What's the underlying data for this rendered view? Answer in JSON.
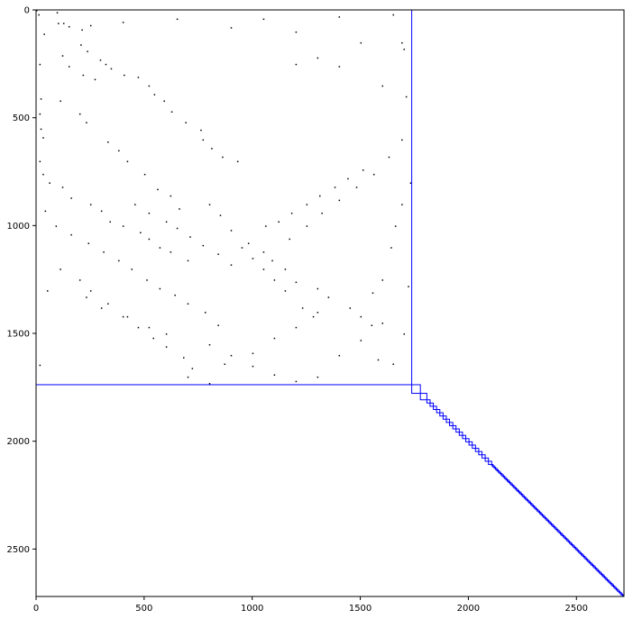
{
  "chart_data": {
    "type": "heatmap",
    "title": "",
    "xlabel": "",
    "ylabel": "",
    "matrix_size": 2720,
    "xlim": [
      0,
      2720
    ],
    "ylim": [
      2720,
      0
    ],
    "x_ticks": [
      0,
      500,
      1000,
      1500,
      2000,
      2500
    ],
    "y_ticks": [
      0,
      500,
      1000,
      1500,
      2000,
      2500
    ],
    "x_tick_labels": [
      "0",
      "500",
      "1000",
      "1500",
      "2000",
      "2500"
    ],
    "y_tick_labels": [
      "0",
      "500",
      "1000",
      "1500",
      "2000",
      "2500"
    ],
    "grid": false,
    "colors": {
      "nonzero": "#000000",
      "block_outline": "#0000ff",
      "frame": "#000000"
    },
    "blocks": [
      {
        "start": 0,
        "end": 1738
      },
      {
        "start": 1738,
        "end": 1778
      },
      {
        "start": 1778,
        "end": 1808
      },
      {
        "start": 1808,
        "end": 2720,
        "pattern": "small diagonal blocks"
      }
    ],
    "nonzeros": [
      [
        0,
        0
      ],
      [
        10,
        20
      ],
      [
        95,
        10
      ],
      [
        100,
        60
      ],
      [
        35,
        110
      ],
      [
        15,
        250
      ],
      [
        20,
        410
      ],
      [
        15,
        480
      ],
      [
        20,
        550
      ],
      [
        30,
        590
      ],
      [
        15,
        700
      ],
      [
        30,
        760
      ],
      [
        40,
        930
      ],
      [
        50,
        1300
      ],
      [
        15,
        1645
      ],
      [
        125,
        60
      ],
      [
        150,
        75
      ],
      [
        210,
        90
      ],
      [
        205,
        160
      ],
      [
        235,
        190
      ],
      [
        295,
        230
      ],
      [
        320,
        250
      ],
      [
        345,
        270
      ],
      [
        405,
        300
      ],
      [
        470,
        310
      ],
      [
        520,
        350
      ],
      [
        545,
        390
      ],
      [
        590,
        420
      ],
      [
        625,
        470
      ],
      [
        690,
        520
      ],
      [
        760,
        555
      ],
      [
        770,
        600
      ],
      [
        810,
        640
      ],
      [
        860,
        680
      ],
      [
        930,
        700
      ],
      [
        120,
        210
      ],
      [
        150,
        260
      ],
      [
        215,
        300
      ],
      [
        270,
        320
      ],
      [
        110,
        420
      ],
      [
        200,
        480
      ],
      [
        230,
        520
      ],
      [
        330,
        610
      ],
      [
        380,
        650
      ],
      [
        420,
        700
      ],
      [
        500,
        760
      ],
      [
        560,
        830
      ],
      [
        620,
        860
      ],
      [
        660,
        920
      ],
      [
        60,
        800
      ],
      [
        120,
        820
      ],
      [
        160,
        870
      ],
      [
        250,
        900
      ],
      [
        300,
        930
      ],
      [
        340,
        980
      ],
      [
        400,
        1000
      ],
      [
        480,
        1030
      ],
      [
        520,
        1060
      ],
      [
        570,
        1100
      ],
      [
        620,
        1120
      ],
      [
        700,
        1160
      ],
      [
        90,
        1000
      ],
      [
        160,
        1040
      ],
      [
        240,
        1080
      ],
      [
        310,
        1120
      ],
      [
        380,
        1160
      ],
      [
        440,
        1200
      ],
      [
        510,
        1250
      ],
      [
        570,
        1290
      ],
      [
        640,
        1320
      ],
      [
        700,
        1360
      ],
      [
        780,
        1400
      ],
      [
        840,
        1460
      ],
      [
        110,
        1200
      ],
      [
        200,
        1250
      ],
      [
        250,
        1300
      ],
      [
        330,
        1360
      ],
      [
        400,
        1420
      ],
      [
        470,
        1470
      ],
      [
        540,
        1520
      ],
      [
        600,
        1560
      ],
      [
        680,
        1610
      ],
      [
        720,
        1660
      ],
      [
        250,
        70
      ],
      [
        400,
        55
      ],
      [
        650,
        40
      ],
      [
        1050,
        40
      ],
      [
        1400,
        30
      ],
      [
        1650,
        20
      ],
      [
        900,
        80
      ],
      [
        1200,
        100
      ],
      [
        230,
        1330
      ],
      [
        300,
        1380
      ],
      [
        420,
        1420
      ],
      [
        520,
        1470
      ],
      [
        600,
        1500
      ],
      [
        800,
        1550
      ],
      [
        900,
        1600
      ],
      [
        1000,
        1650
      ],
      [
        1100,
        1690
      ],
      [
        1200,
        1720
      ],
      [
        1300,
        1700
      ],
      [
        1400,
        1600
      ],
      [
        1500,
        1530
      ],
      [
        1600,
        1450
      ],
      [
        980,
        1080
      ],
      [
        1050,
        1120
      ],
      [
        1090,
        1160
      ],
      [
        1150,
        1200
      ],
      [
        1200,
        1260
      ],
      [
        1300,
        1290
      ],
      [
        1350,
        1330
      ],
      [
        1450,
        1380
      ],
      [
        1500,
        1420
      ],
      [
        1550,
        1460
      ],
      [
        1200,
        250
      ],
      [
        1300,
        220
      ],
      [
        1400,
        260
      ],
      [
        1500,
        150
      ],
      [
        1600,
        350
      ],
      [
        1700,
        180
      ],
      [
        1690,
        900
      ],
      [
        1640,
        1100
      ],
      [
        1600,
        1250
      ],
      [
        1555,
        1310
      ],
      [
        800,
        900
      ],
      [
        850,
        950
      ],
      [
        900,
        1020
      ],
      [
        950,
        1100
      ],
      [
        1000,
        1150
      ],
      [
        1050,
        1200
      ],
      [
        1100,
        1250
      ],
      [
        1150,
        1300
      ],
      [
        1230,
        1380
      ],
      [
        1280,
        1420
      ],
      [
        455,
        900
      ],
      [
        520,
        940
      ],
      [
        600,
        980
      ],
      [
        650,
        1010
      ],
      [
        710,
        1050
      ],
      [
        770,
        1090
      ],
      [
        840,
        1130
      ],
      [
        900,
        1180
      ],
      [
        1060,
        1000
      ],
      [
        1120,
        980
      ],
      [
        1180,
        940
      ],
      [
        1250,
        900
      ],
      [
        1310,
        860
      ],
      [
        1380,
        820
      ],
      [
        1440,
        780
      ],
      [
        1510,
        740
      ],
      [
        1690,
        600
      ],
      [
        1630,
        680
      ],
      [
        1560,
        760
      ],
      [
        1480,
        820
      ],
      [
        1400,
        880
      ],
      [
        1320,
        940
      ],
      [
        1250,
        1000
      ],
      [
        1170,
        1060
      ],
      [
        700,
        1700
      ],
      [
        800,
        1730
      ],
      [
        870,
        1640
      ],
      [
        1000,
        1590
      ],
      [
        1100,
        1520
      ],
      [
        1200,
        1470
      ],
      [
        1300,
        1400
      ],
      [
        1650,
        1640
      ],
      [
        1700,
        1500
      ],
      [
        1720,
        1280
      ],
      [
        1730,
        800
      ],
      [
        1710,
        400
      ],
      [
        1690,
        150
      ],
      [
        1660,
        1000
      ],
      [
        1580,
        1620
      ]
    ]
  }
}
